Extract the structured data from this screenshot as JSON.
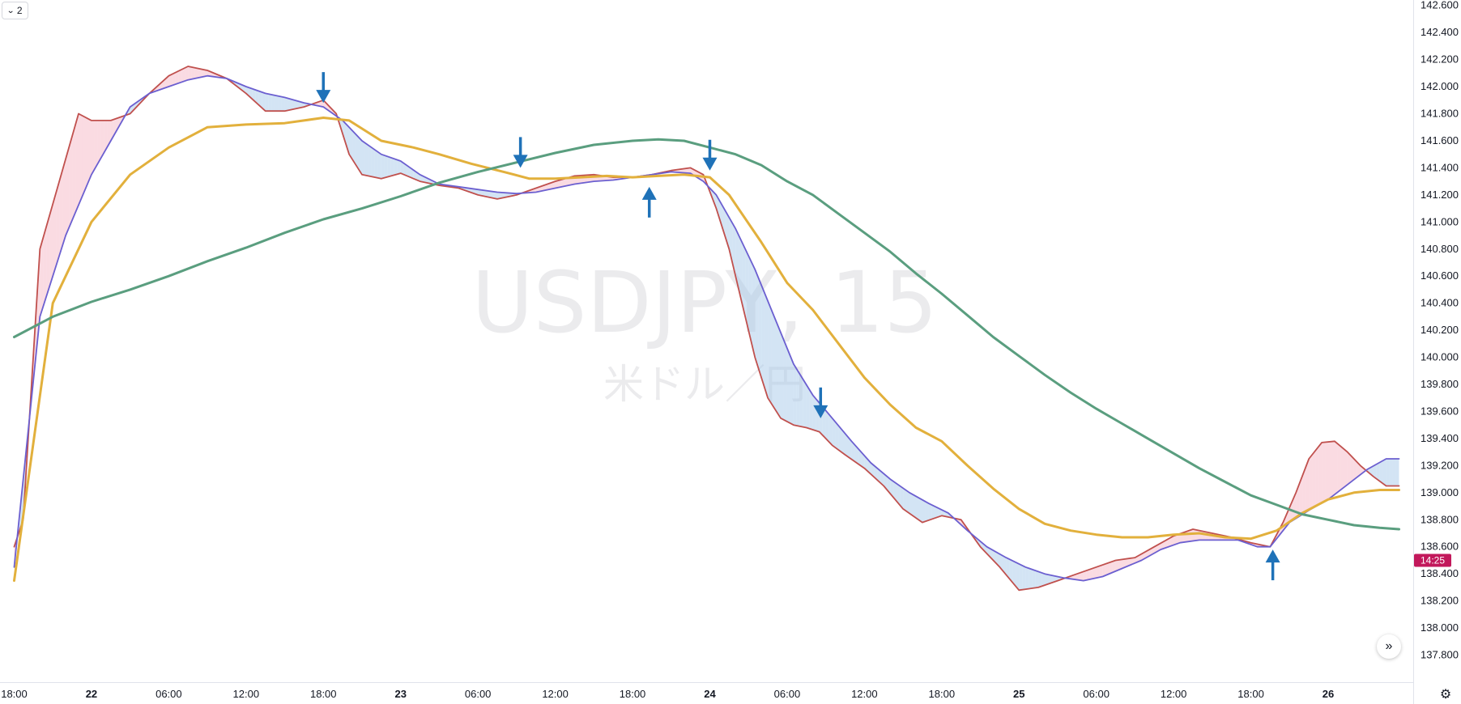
{
  "toolbar": {
    "collapse_count": "2",
    "collapse_icon": "chevron-down-icon",
    "scroll_icon": "double-chevron-right-icon",
    "settings_icon": "gear-icon"
  },
  "chart_data": {
    "type": "line",
    "watermark": "USDJPY, 15",
    "watermark_sub": "米ドル／円",
    "price_axis": {
      "ylim": [
        137.6,
        142.64
      ],
      "ticks": [
        "142.600",
        "142.400",
        "142.200",
        "142.000",
        "141.800",
        "141.600",
        "141.400",
        "141.200",
        "141.000",
        "140.800",
        "140.600",
        "140.400",
        "140.200",
        "140.000",
        "139.800",
        "139.600",
        "139.400",
        "139.200",
        "139.000",
        "138.800",
        "138.600",
        "138.400",
        "138.200",
        "138.000",
        "137.800"
      ]
    },
    "time_axis": {
      "ticks": [
        {
          "label": "18:00",
          "t": 0,
          "bold": false
        },
        {
          "label": "22",
          "t": 6,
          "bold": true
        },
        {
          "label": "06:00",
          "t": 12,
          "bold": false
        },
        {
          "label": "12:00",
          "t": 18,
          "bold": false
        },
        {
          "label": "18:00",
          "t": 24,
          "bold": false
        },
        {
          "label": "23",
          "t": 30,
          "bold": true
        },
        {
          "label": "06:00",
          "t": 36,
          "bold": false
        },
        {
          "label": "12:00",
          "t": 42,
          "bold": false
        },
        {
          "label": "18:00",
          "t": 48,
          "bold": false
        },
        {
          "label": "24",
          "t": 54,
          "bold": true
        },
        {
          "label": "06:00",
          "t": 60,
          "bold": false
        },
        {
          "label": "12:00",
          "t": 66,
          "bold": false
        },
        {
          "label": "18:00",
          "t": 72,
          "bold": false
        },
        {
          "label": "25",
          "t": 78,
          "bold": true
        },
        {
          "label": "06:00",
          "t": 84,
          "bold": false
        },
        {
          "label": "12:00",
          "t": 90,
          "bold": false
        },
        {
          "label": "18:00",
          "t": 96,
          "bold": false
        },
        {
          "label": "26",
          "t": 102,
          "bold": true
        }
      ],
      "tlim": [
        -1.1,
        108.6
      ]
    },
    "last_price": {
      "label": "14:25",
      "value": 138.5,
      "color": "#c2185b"
    },
    "series": [
      {
        "color": "#c0504d",
        "points": [
          [
            0,
            138.6
          ],
          [
            0.7,
            138.8
          ],
          [
            2,
            140.8
          ],
          [
            3.5,
            141.3
          ],
          [
            5,
            141.8
          ],
          [
            6,
            141.75
          ],
          [
            7.5,
            141.75
          ],
          [
            9,
            141.8
          ],
          [
            10.5,
            141.95
          ],
          [
            12,
            142.08
          ],
          [
            13.5,
            142.15
          ],
          [
            15,
            142.12
          ],
          [
            16.5,
            142.06
          ],
          [
            18,
            141.95
          ],
          [
            19.5,
            141.82
          ],
          [
            21,
            141.82
          ],
          [
            22.5,
            141.85
          ],
          [
            24,
            141.9
          ],
          [
            25,
            141.8
          ],
          [
            26,
            141.5
          ],
          [
            27,
            141.35
          ],
          [
            28.5,
            141.32
          ],
          [
            30,
            141.36
          ],
          [
            31.5,
            141.3
          ],
          [
            33,
            141.27
          ],
          [
            34.5,
            141.25
          ],
          [
            36,
            141.2
          ],
          [
            37.5,
            141.17
          ],
          [
            39,
            141.2
          ],
          [
            40.5,
            141.25
          ],
          [
            42,
            141.3
          ],
          [
            43.5,
            141.34
          ],
          [
            45,
            141.35
          ],
          [
            46.5,
            141.33
          ],
          [
            48,
            141.33
          ],
          [
            49.5,
            141.35
          ],
          [
            51,
            141.38
          ],
          [
            52.5,
            141.4
          ],
          [
            53.5,
            141.35
          ],
          [
            54.5,
            141.1
          ],
          [
            55.5,
            140.8
          ],
          [
            56.5,
            140.4
          ],
          [
            57.5,
            140.0
          ],
          [
            58.5,
            139.7
          ],
          [
            59.5,
            139.55
          ],
          [
            60.5,
            139.5
          ],
          [
            61.5,
            139.48
          ],
          [
            62.5,
            139.45
          ],
          [
            63.5,
            139.35
          ],
          [
            64.5,
            139.28
          ],
          [
            66,
            139.18
          ],
          [
            67.5,
            139.05
          ],
          [
            69,
            138.88
          ],
          [
            70.5,
            138.78
          ],
          [
            72,
            138.83
          ],
          [
            73.5,
            138.8
          ],
          [
            75,
            138.6
          ],
          [
            76.5,
            138.45
          ],
          [
            78,
            138.28
          ],
          [
            79.5,
            138.3
          ],
          [
            81,
            138.35
          ],
          [
            82.5,
            138.4
          ],
          [
            84,
            138.45
          ],
          [
            85.5,
            138.5
          ],
          [
            87,
            138.52
          ],
          [
            88.5,
            138.6
          ],
          [
            90,
            138.68
          ],
          [
            91.5,
            138.73
          ],
          [
            93,
            138.7
          ],
          [
            94.5,
            138.67
          ],
          [
            96,
            138.63
          ],
          [
            97.5,
            138.6
          ],
          [
            98.5,
            138.78
          ],
          [
            99.5,
            139.0
          ],
          [
            100.5,
            139.25
          ],
          [
            101.5,
            139.37
          ],
          [
            102.5,
            139.38
          ],
          [
            103.5,
            139.3
          ],
          [
            104.5,
            139.2
          ],
          [
            105.5,
            139.12
          ],
          [
            106.5,
            139.05
          ],
          [
            107.5,
            139.05
          ]
        ]
      },
      {
        "color": "#6b5fd0",
        "points": [
          [
            0,
            138.45
          ],
          [
            2,
            140.3
          ],
          [
            4,
            140.9
          ],
          [
            6,
            141.35
          ],
          [
            7.5,
            141.6
          ],
          [
            9,
            141.85
          ],
          [
            10.5,
            141.95
          ],
          [
            12,
            142.0
          ],
          [
            13.5,
            142.05
          ],
          [
            15,
            142.08
          ],
          [
            16.5,
            142.06
          ],
          [
            18,
            142.0
          ],
          [
            19.5,
            141.95
          ],
          [
            21,
            141.92
          ],
          [
            22.5,
            141.88
          ],
          [
            24,
            141.85
          ],
          [
            25.5,
            141.75
          ],
          [
            27,
            141.6
          ],
          [
            28.5,
            141.5
          ],
          [
            30,
            141.45
          ],
          [
            31.5,
            141.35
          ],
          [
            33,
            141.28
          ],
          [
            34.5,
            141.26
          ],
          [
            36,
            141.24
          ],
          [
            37.5,
            141.22
          ],
          [
            39,
            141.21
          ],
          [
            40.5,
            141.22
          ],
          [
            42,
            141.25
          ],
          [
            43.5,
            141.28
          ],
          [
            45,
            141.3
          ],
          [
            46.5,
            141.31
          ],
          [
            48,
            141.33
          ],
          [
            49.5,
            141.35
          ],
          [
            51,
            141.37
          ],
          [
            52.5,
            141.36
          ],
          [
            53.5,
            141.3
          ],
          [
            54.5,
            141.2
          ],
          [
            56,
            140.95
          ],
          [
            57.5,
            140.65
          ],
          [
            59,
            140.3
          ],
          [
            60.5,
            139.95
          ],
          [
            62,
            139.72
          ],
          [
            63.5,
            139.55
          ],
          [
            65,
            139.38
          ],
          [
            66.5,
            139.22
          ],
          [
            68,
            139.1
          ],
          [
            69.5,
            139.0
          ],
          [
            71,
            138.92
          ],
          [
            72.5,
            138.85
          ],
          [
            74,
            138.72
          ],
          [
            75.5,
            138.6
          ],
          [
            77,
            138.52
          ],
          [
            78.5,
            138.45
          ],
          [
            80,
            138.4
          ],
          [
            81.5,
            138.37
          ],
          [
            83,
            138.35
          ],
          [
            84.5,
            138.38
          ],
          [
            86,
            138.44
          ],
          [
            87.5,
            138.5
          ],
          [
            89,
            138.58
          ],
          [
            90.5,
            138.63
          ],
          [
            92,
            138.65
          ],
          [
            93.5,
            138.65
          ],
          [
            95,
            138.65
          ],
          [
            96.5,
            138.6
          ],
          [
            97.5,
            138.6
          ],
          [
            99,
            138.78
          ],
          [
            100.5,
            138.87
          ],
          [
            102,
            138.95
          ],
          [
            103.5,
            139.06
          ],
          [
            105,
            139.17
          ],
          [
            106.5,
            139.25
          ],
          [
            107.5,
            139.25
          ]
        ]
      },
      {
        "color": "#e2b03c",
        "points": [
          [
            0,
            138.35
          ],
          [
            3,
            140.4
          ],
          [
            6,
            141.0
          ],
          [
            9,
            141.35
          ],
          [
            12,
            141.55
          ],
          [
            15,
            141.7
          ],
          [
            18,
            141.72
          ],
          [
            21,
            141.73
          ],
          [
            24,
            141.77
          ],
          [
            26,
            141.75
          ],
          [
            28.5,
            141.6
          ],
          [
            31,
            141.55
          ],
          [
            33,
            141.5
          ],
          [
            35.5,
            141.43
          ],
          [
            38,
            141.37
          ],
          [
            40,
            141.32
          ],
          [
            42,
            141.32
          ],
          [
            44,
            141.33
          ],
          [
            46,
            141.34
          ],
          [
            48,
            141.33
          ],
          [
            50,
            141.34
          ],
          [
            52,
            141.35
          ],
          [
            54,
            141.33
          ],
          [
            55.5,
            141.2
          ],
          [
            58,
            140.85
          ],
          [
            60,
            140.55
          ],
          [
            62,
            140.35
          ],
          [
            64,
            140.1
          ],
          [
            66,
            139.85
          ],
          [
            68,
            139.65
          ],
          [
            70,
            139.48
          ],
          [
            72,
            139.38
          ],
          [
            74,
            139.2
          ],
          [
            76,
            139.03
          ],
          [
            78,
            138.88
          ],
          [
            80,
            138.77
          ],
          [
            82,
            138.72
          ],
          [
            84,
            138.69
          ],
          [
            86,
            138.67
          ],
          [
            88,
            138.67
          ],
          [
            90,
            138.69
          ],
          [
            92,
            138.7
          ],
          [
            94,
            138.67
          ],
          [
            96,
            138.66
          ],
          [
            98,
            138.72
          ],
          [
            100,
            138.85
          ],
          [
            102,
            138.95
          ],
          [
            104,
            139.0
          ],
          [
            106,
            139.02
          ],
          [
            107.5,
            139.02
          ]
        ]
      },
      {
        "color": "#5a9e7f",
        "points": [
          [
            0,
            140.15
          ],
          [
            3,
            140.3
          ],
          [
            6,
            140.41
          ],
          [
            9,
            140.5
          ],
          [
            12,
            140.6
          ],
          [
            15,
            140.71
          ],
          [
            18,
            140.81
          ],
          [
            21,
            140.92
          ],
          [
            24,
            141.02
          ],
          [
            27,
            141.1
          ],
          [
            30,
            141.19
          ],
          [
            33,
            141.29
          ],
          [
            36,
            141.37
          ],
          [
            39,
            141.44
          ],
          [
            42,
            141.51
          ],
          [
            45,
            141.57
          ],
          [
            48,
            141.6
          ],
          [
            50,
            141.61
          ],
          [
            52,
            141.6
          ],
          [
            54,
            141.55
          ],
          [
            56,
            141.5
          ],
          [
            58,
            141.42
          ],
          [
            60,
            141.3
          ],
          [
            62,
            141.2
          ],
          [
            64,
            141.06
          ],
          [
            66,
            140.92
          ],
          [
            68,
            140.78
          ],
          [
            70,
            140.62
          ],
          [
            72,
            140.47
          ],
          [
            74,
            140.31
          ],
          [
            76,
            140.15
          ],
          [
            78,
            140.01
          ],
          [
            80,
            139.87
          ],
          [
            82,
            139.74
          ],
          [
            84,
            139.62
          ],
          [
            86,
            139.51
          ],
          [
            88,
            139.4
          ],
          [
            90,
            139.29
          ],
          [
            92,
            139.18
          ],
          [
            94,
            139.08
          ],
          [
            96,
            138.98
          ],
          [
            98,
            138.91
          ],
          [
            100,
            138.84
          ],
          [
            102,
            138.8
          ],
          [
            104,
            138.76
          ],
          [
            106,
            138.74
          ],
          [
            107.5,
            138.73
          ]
        ]
      }
    ],
    "fills": [
      {
        "between": [
          0,
          1
        ],
        "color_when_first_above": "rgba(242,170,185,0.42)",
        "color_when_second_above": "rgba(162,198,232,0.48)"
      }
    ],
    "markers": [
      {
        "direction": "down",
        "t": 24,
        "y": 141.88
      },
      {
        "direction": "down",
        "t": 39.3,
        "y": 141.4
      },
      {
        "direction": "up",
        "t": 49.3,
        "y": 141.26
      },
      {
        "direction": "down",
        "t": 54,
        "y": 141.38
      },
      {
        "direction": "down",
        "t": 62.6,
        "y": 139.55
      },
      {
        "direction": "up",
        "t": 97.7,
        "y": 138.58
      }
    ],
    "marker_color": "#1f72b8"
  }
}
